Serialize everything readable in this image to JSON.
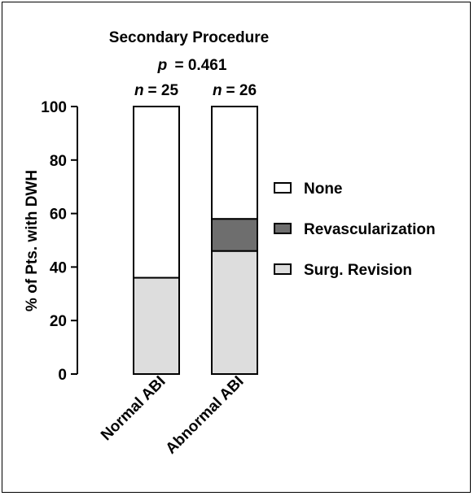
{
  "chart_data": {
    "type": "bar",
    "stacked": true,
    "title": "Secondary Procedure",
    "p_label": "p",
    "p_value": "= 0.461",
    "n_symbol": "n",
    "categories": [
      "Normal ABI",
      "Abnormal ABI"
    ],
    "n_values": [
      "= 25",
      "= 26"
    ],
    "ylabel": "% of Pts. with DWH",
    "ylim": [
      0,
      100
    ],
    "yticks": [
      "0",
      "20",
      "40",
      "60",
      "80",
      "100"
    ],
    "grid": false,
    "legend_position": "right",
    "series": [
      {
        "name": "Surg. Revision",
        "values": [
          36,
          46
        ],
        "color": "#dddddd"
      },
      {
        "name": "Revascularization",
        "values": [
          0,
          12
        ],
        "color": "#6e6e6e"
      },
      {
        "name": "None",
        "values": [
          64,
          42
        ],
        "color": "#ffffff"
      }
    ],
    "legend_order": [
      "None",
      "Revascularization",
      "Surg. Revision"
    ]
  }
}
